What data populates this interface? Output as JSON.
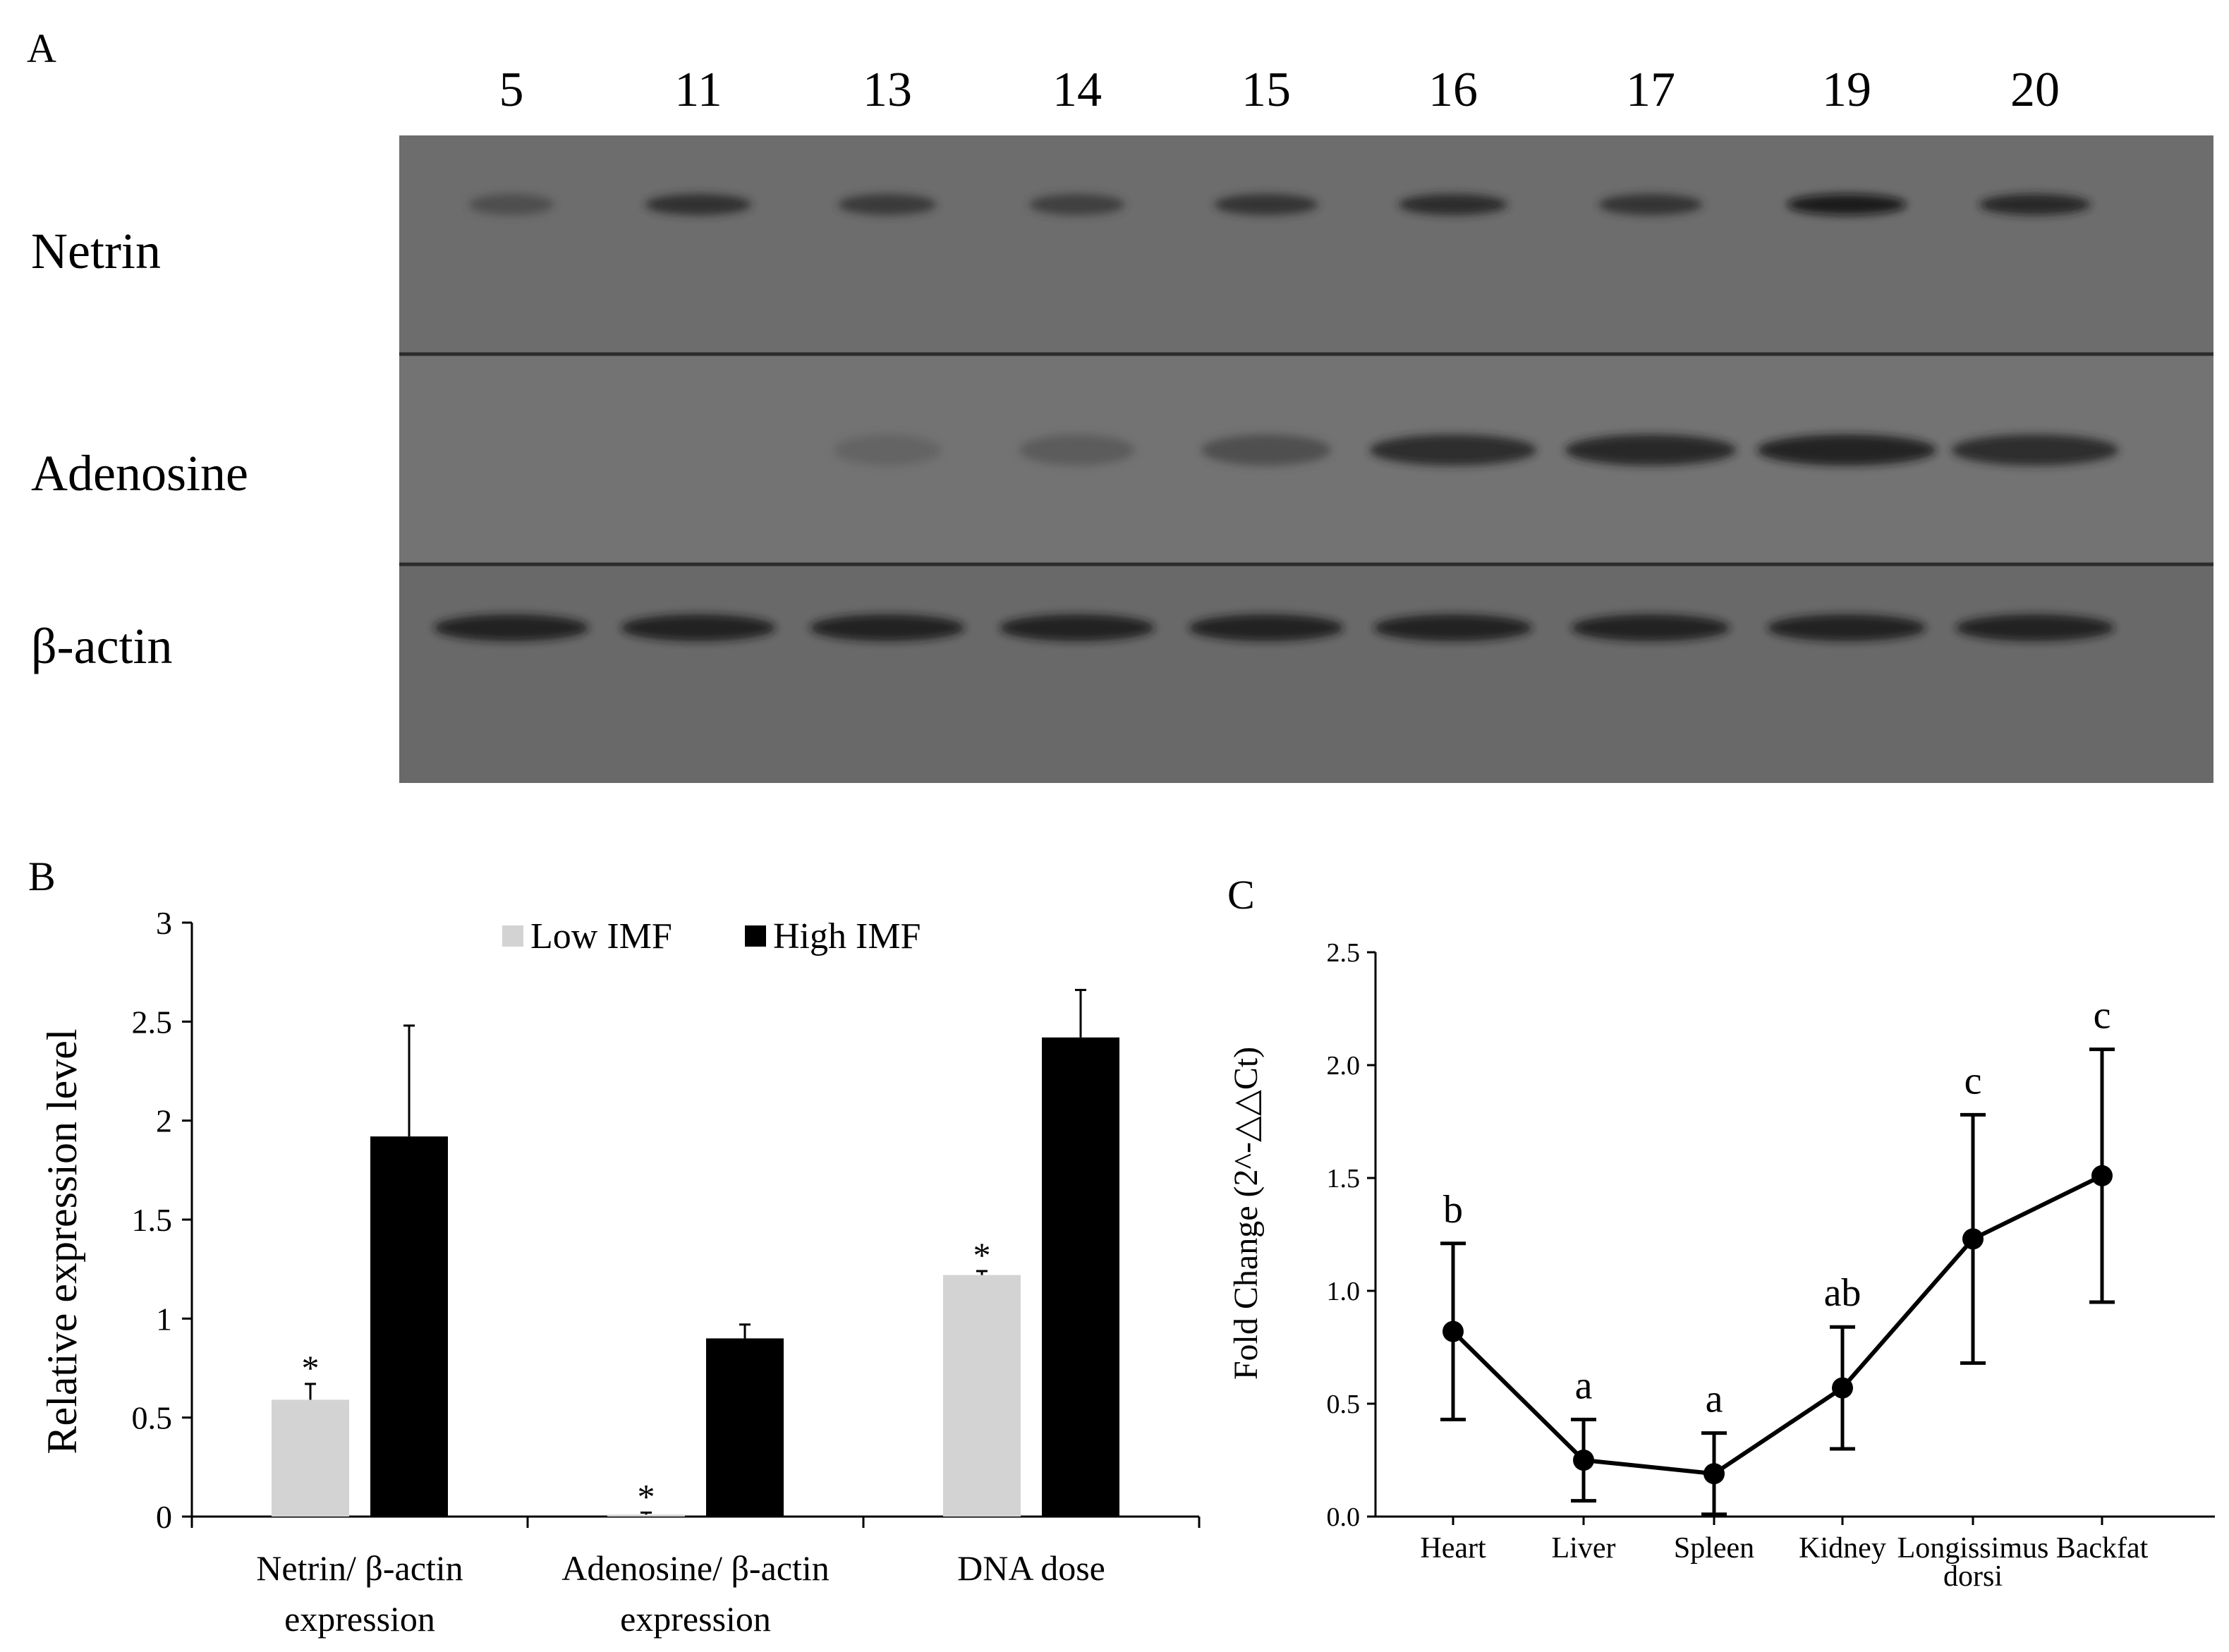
{
  "panels": {
    "a": {
      "letter": "A",
      "lanes": [
        "5",
        "11",
        "13",
        "14",
        "15",
        "16",
        "17",
        "19",
        "20"
      ],
      "rows": [
        "Netrin",
        "Adenosine",
        "β-actin"
      ],
      "blot": {
        "netrin_intensity": [
          0.35,
          0.75,
          0.6,
          0.55,
          0.7,
          0.8,
          0.7,
          1.0,
          0.85
        ],
        "adenosine_intensity": [
          0.0,
          0.0,
          0.08,
          0.18,
          0.35,
          0.8,
          0.85,
          0.95,
          0.8
        ],
        "actin_intensity": [
          0.9,
          0.9,
          0.9,
          0.9,
          0.9,
          0.95,
          0.95,
          0.95,
          0.95
        ]
      }
    },
    "b": {
      "letter": "B"
    },
    "c": {
      "letter": "C"
    }
  },
  "chart_data": [
    {
      "type": "bar",
      "panel": "B",
      "categories": [
        "Netrin/ β-actin expression",
        "Adenosine/ β-actin expression",
        "DNA dose"
      ],
      "category_lines": [
        [
          "Netrin/ β-actin",
          "expression"
        ],
        [
          "Adenosine/ β-actin",
          "expression"
        ],
        [
          "DNA dose"
        ]
      ],
      "series": [
        {
          "name": "Low IMF",
          "color": "#d3d3d3",
          "values": [
            0.59,
            0.01,
            1.22
          ],
          "errors": [
            0.08,
            0.01,
            0.02
          ],
          "significance": [
            "*",
            "*",
            "*"
          ]
        },
        {
          "name": "High IMF",
          "color": "#000000",
          "values": [
            1.92,
            0.9,
            2.42
          ],
          "errors": [
            0.56,
            0.07,
            0.24
          ]
        }
      ],
      "ylabel": "Relative expression level",
      "ylim": [
        0,
        3
      ],
      "yticks": [
        0,
        0.5,
        1,
        1.5,
        2,
        2.5,
        3
      ],
      "ytick_labels": [
        "0",
        "0.5",
        "1",
        "1.5",
        "2",
        "2.5",
        "3"
      ],
      "legend_position": "top-center",
      "grid": false
    },
    {
      "type": "line",
      "panel": "C",
      "categories": [
        "Heart",
        "Liver",
        "Spleen",
        "Kidney",
        "Longissimus dorsi",
        "Backfat"
      ],
      "category_lines": [
        [
          "Heart"
        ],
        [
          "Liver"
        ],
        [
          "Spleen"
        ],
        [
          "Kidney"
        ],
        [
          "Longissimus",
          "dorsi"
        ],
        [
          "Backfat"
        ]
      ],
      "series": [
        {
          "values": [
            0.82,
            0.25,
            0.19,
            0.57,
            1.23,
            1.51
          ],
          "errors": [
            0.39,
            0.18,
            0.18,
            0.27,
            0.55,
            0.56
          ],
          "letters": [
            "b",
            "a",
            "a",
            "ab",
            "c",
            "c"
          ],
          "color": "#000000"
        }
      ],
      "ylabel": "Fold Change (2^-△△Ct)",
      "ylim": [
        0,
        2.5
      ],
      "yticks": [
        0,
        0.5,
        1,
        1.5,
        2,
        2.5
      ],
      "ytick_labels": [
        "0.0",
        "0.5",
        "1.0",
        "1.5",
        "2.0",
        "2.5"
      ],
      "grid": false
    }
  ]
}
